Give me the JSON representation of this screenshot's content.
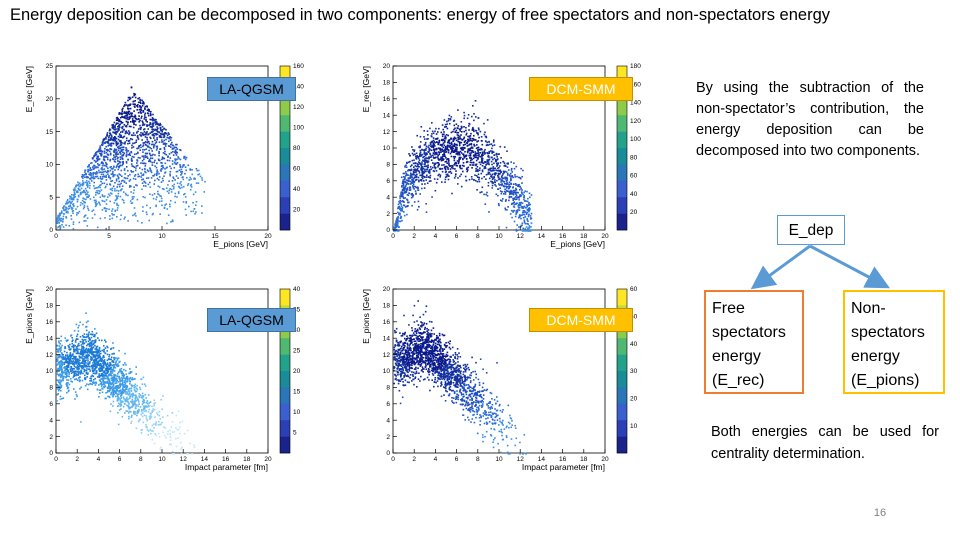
{
  "slide": {
    "title": "Energy deposition can be decomposed in two components: energy of free spectators and non-spectators energy",
    "side_text": "By using the subtraction of the non-spectator’s contribution, the energy deposition can be decomposed into two components.",
    "edep_label": "E_dep",
    "free_box": "Free spectators energy (E_rec)",
    "non_box": "Non-spectators energy (E_pions)",
    "both_text": "Both energies can be used for centrality determination.",
    "page_number": "16"
  },
  "chart_data": [
    {
      "type": "heatmap",
      "badge": "LA-QGSM",
      "xlabel": "E_pions [GeV]",
      "ylabel": "E_rec [GeV]",
      "xlim": [
        0,
        20
      ],
      "ylim": [
        0,
        25
      ],
      "xticks": [
        "0",
        "5",
        "10",
        "15",
        "20"
      ],
      "yticks": [
        "0",
        "5",
        "10",
        "15",
        "20",
        "25"
      ],
      "zlim": [
        0,
        160
      ],
      "zticks": [
        "20",
        "40",
        "60",
        "80",
        "100",
        "120",
        "140",
        "160"
      ],
      "colormap": "dark",
      "shape": "triangle",
      "peak": [
        7,
        19
      ],
      "xmax_data": 14
    },
    {
      "type": "heatmap",
      "badge": "DCM-SMM",
      "xlabel": "E_pions [GeV]",
      "ylabel": "E_rec [GeV]",
      "xlim": [
        0,
        20
      ],
      "ylim": [
        0,
        20
      ],
      "xticks": [
        "0",
        "2",
        "4",
        "6",
        "8",
        "10",
        "12",
        "14",
        "16",
        "18",
        "20"
      ],
      "yticks": [
        "0",
        "2",
        "4",
        "6",
        "8",
        "10",
        "12",
        "14",
        "16",
        "18",
        "20"
      ],
      "zlim": [
        0,
        180
      ],
      "zticks": [
        "20",
        "40",
        "60",
        "80",
        "100",
        "120",
        "140",
        "160",
        "180"
      ],
      "colormap": "dark",
      "shape": "arch",
      "peak": [
        6,
        10
      ],
      "xmax_data": 13
    },
    {
      "type": "heatmap",
      "badge": "LA-QGSM",
      "xlabel": "Impact parameter [fm]",
      "ylabel": "E_pions [GeV]",
      "xlim": [
        0,
        20
      ],
      "ylim": [
        0,
        20
      ],
      "xticks": [
        "0",
        "2",
        "4",
        "6",
        "8",
        "10",
        "12",
        "14",
        "16",
        "18",
        "20"
      ],
      "yticks": [
        "0",
        "2",
        "4",
        "6",
        "8",
        "10",
        "12",
        "14",
        "16",
        "18",
        "20"
      ],
      "zlim": [
        0,
        40
      ],
      "zticks": [
        "5",
        "10",
        "15",
        "20",
        "25",
        "30",
        "35",
        "40"
      ],
      "colormap": "light",
      "shape": "decay",
      "peak": [
        3,
        12
      ],
      "xmax_data": 13
    },
    {
      "type": "heatmap",
      "badge": "DCM-SMM",
      "xlabel": "Impact parameter [fm]",
      "ylabel": "E_pions [GeV]",
      "xlim": [
        0,
        20
      ],
      "ylim": [
        0,
        20
      ],
      "xticks": [
        "0",
        "2",
        "4",
        "6",
        "8",
        "10",
        "12",
        "14",
        "16",
        "18",
        "20"
      ],
      "yticks": [
        "0",
        "2",
        "4",
        "6",
        "8",
        "10",
        "12",
        "14",
        "16",
        "18",
        "20"
      ],
      "zlim": [
        0,
        60
      ],
      "zticks": [
        "10",
        "20",
        "30",
        "40",
        "50",
        "60"
      ],
      "colormap": "dark",
      "shape": "decay",
      "peak": [
        3,
        13
      ],
      "xmax_data": 13
    }
  ]
}
